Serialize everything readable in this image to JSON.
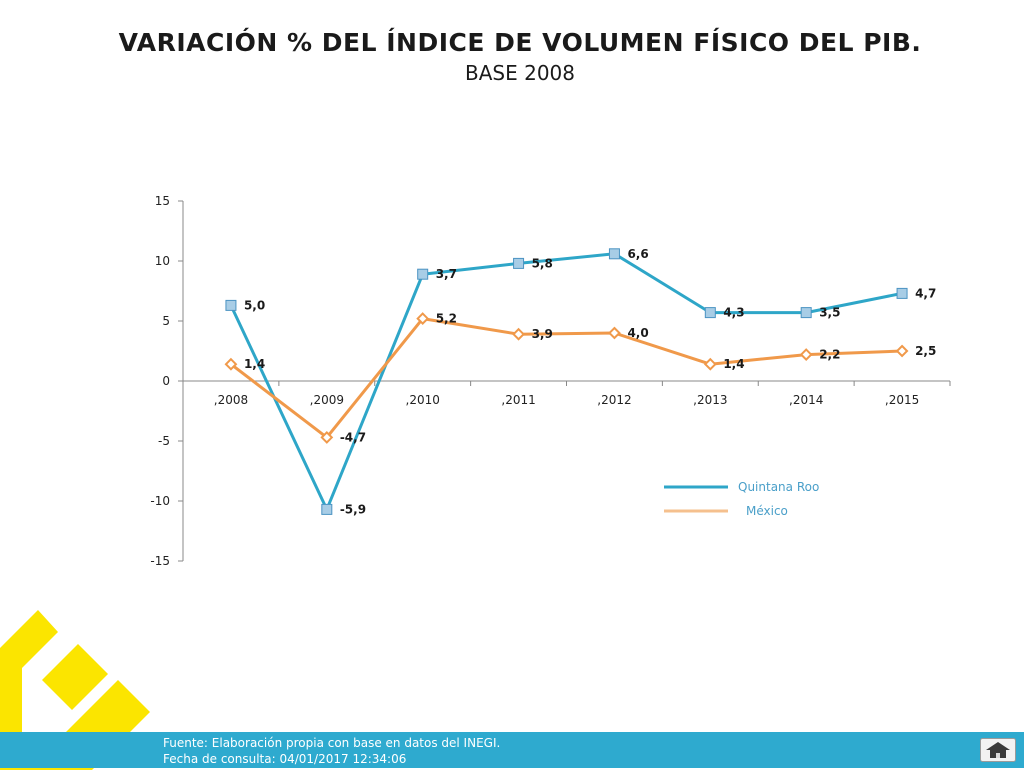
{
  "header": {
    "title": "VARIACIÓN % DEL ÍNDICE DE VOLUMEN FÍSICO DEL PIB.",
    "subtitle": "BASE 2008"
  },
  "chart_data": {
    "type": "line",
    "categories": [
      ",2008",
      ",2009",
      ",2010",
      ",2011",
      ",2012",
      ",2013",
      ",2014",
      ",2015"
    ],
    "ylim": [
      -15,
      15
    ],
    "yticks": [
      15,
      10,
      5,
      0,
      -5,
      -10,
      -15
    ],
    "legend_position": "bottom-right",
    "series": [
      {
        "name": "Quintana Roo",
        "color": "#2ea6c8",
        "marker": "square",
        "values": [
          6.3,
          -10.7,
          8.9,
          9.8,
          10.6,
          5.7,
          5.7,
          7.3
        ],
        "labels": [
          "5,0",
          "-5,9",
          "3,7",
          "5,8",
          "6,6",
          "4,3",
          "3,5",
          "4,7"
        ]
      },
      {
        "name": "México",
        "color": "#f0994a",
        "marker": "diamond",
        "values": [
          1.4,
          -4.7,
          5.2,
          3.9,
          4.0,
          1.4,
          2.2,
          2.5
        ],
        "labels": [
          "1,4",
          "-4,7",
          "5,2",
          "3,9",
          "4,0",
          "1,4",
          "2,2",
          "2,5"
        ]
      }
    ]
  },
  "footer": {
    "source": "Fuente: Elaboración propia con base en datos del INEGI.",
    "date": "Fecha de consulta:  04/01/2017 12:34:06"
  },
  "icons": {
    "home": "home-icon",
    "logo": "logo-icon"
  }
}
